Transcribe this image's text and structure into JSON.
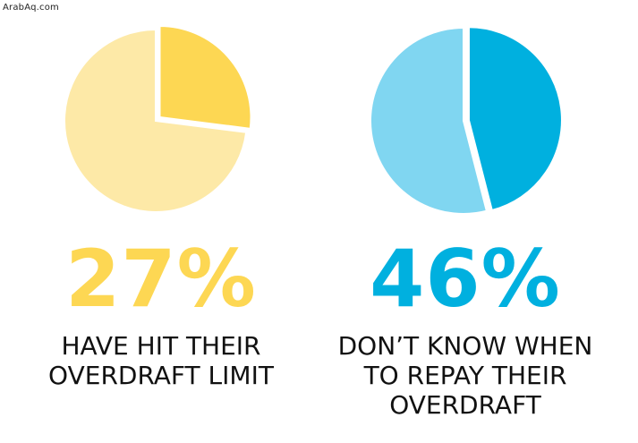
{
  "watermark": "ArabAq.com",
  "colors": {
    "yellow_main": "#fdd753",
    "yellow_light": "#fde9a7",
    "blue_main": "#00b0df",
    "blue_light": "#80d6f1"
  },
  "chart_data": [
    {
      "type": "pie",
      "slices": [
        {
          "value": 27,
          "color": "#fdd753",
          "exploded": true
        },
        {
          "value": 73,
          "color": "#fde9a7",
          "exploded": false
        }
      ],
      "big_label": "27%",
      "caption": "HAVE HIT THEIR\nOVERDRAFT LIMIT"
    },
    {
      "type": "pie",
      "slices": [
        {
          "value": 46,
          "color": "#00b0df",
          "exploded": true
        },
        {
          "value": 54,
          "color": "#80d6f1",
          "exploded": false
        }
      ],
      "big_label": "46%",
      "caption": "DON’T KNOW WHEN\nTO REPAY THEIR\nOVERDRAFT"
    }
  ]
}
